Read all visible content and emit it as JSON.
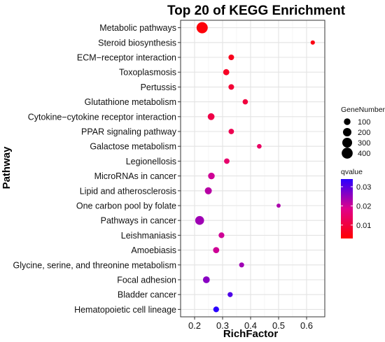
{
  "chart_data": {
    "type": "scatter",
    "title": "Top 20 of KEGG Enrichment",
    "xlabel": "RichFactor",
    "ylabel": "Pathway",
    "xlim": [
      0.15,
      0.665
    ],
    "x_ticks": [
      "0.2",
      "0.3",
      "0.4",
      "0.5",
      "0.6"
    ],
    "grid": true,
    "legend_position": "right",
    "size_legend": {
      "title": "GeneNumber",
      "values": [
        100,
        200,
        300,
        400
      ],
      "labels": [
        "100",
        "200",
        "300",
        "400"
      ]
    },
    "color_legend": {
      "title": "qvalue",
      "range": [
        0.003,
        0.034
      ],
      "ticks": [
        0.01,
        0.02,
        0.03
      ],
      "tick_labels": [
        "0.01",
        "0.02",
        "0.03"
      ],
      "low_color": "#FF0000",
      "mid_color": "#E0008A",
      "high_color": "#2A00FF"
    },
    "points": [
      {
        "pathway": "Metabolic pathways",
        "rich_factor": 0.227,
        "gene_number": 420,
        "qvalue": 0.004
      },
      {
        "pathway": "Steroid biosynthesis",
        "rich_factor": 0.622,
        "gene_number": 23,
        "qvalue": 0.005
      },
      {
        "pathway": "ECM−receptor interaction",
        "rich_factor": 0.331,
        "gene_number": 60,
        "qvalue": 0.006
      },
      {
        "pathway": "Toxoplasmosis",
        "rich_factor": 0.313,
        "gene_number": 80,
        "qvalue": 0.007
      },
      {
        "pathway": "Pertussis",
        "rich_factor": 0.331,
        "gene_number": 60,
        "qvalue": 0.009
      },
      {
        "pathway": "Glutathione metabolism",
        "rich_factor": 0.381,
        "gene_number": 50,
        "qvalue": 0.01
      },
      {
        "pathway": "Cytokine−cytokine receptor interaction",
        "rich_factor": 0.259,
        "gene_number": 110,
        "qvalue": 0.011
      },
      {
        "pathway": "PPAR signaling pathway",
        "rich_factor": 0.331,
        "gene_number": 55,
        "qvalue": 0.012
      },
      {
        "pathway": "Galactose metabolism",
        "rich_factor": 0.431,
        "gene_number": 30,
        "qvalue": 0.014
      },
      {
        "pathway": "Legionellosis",
        "rich_factor": 0.315,
        "gene_number": 55,
        "qvalue": 0.015
      },
      {
        "pathway": "MicroRNAs in cancer",
        "rich_factor": 0.26,
        "gene_number": 100,
        "qvalue": 0.02
      },
      {
        "pathway": "Lipid and atherosclerosis",
        "rich_factor": 0.249,
        "gene_number": 120,
        "qvalue": 0.022
      },
      {
        "pathway": "One carbon pool by folate",
        "rich_factor": 0.5,
        "gene_number": 18,
        "qvalue": 0.023
      },
      {
        "pathway": "Pathways in cancer",
        "rich_factor": 0.218,
        "gene_number": 230,
        "qvalue": 0.024
      },
      {
        "pathway": "Leishmaniasis",
        "rich_factor": 0.296,
        "gene_number": 65,
        "qvalue": 0.02
      },
      {
        "pathway": "Amoebiasis",
        "rich_factor": 0.277,
        "gene_number": 80,
        "qvalue": 0.02
      },
      {
        "pathway": "Glycine, serine, and threonine metabolism",
        "rich_factor": 0.368,
        "gene_number": 40,
        "qvalue": 0.024
      },
      {
        "pathway": "Focal adhesion",
        "rich_factor": 0.242,
        "gene_number": 110,
        "qvalue": 0.026
      },
      {
        "pathway": "Bladder cancer",
        "rich_factor": 0.327,
        "gene_number": 42,
        "qvalue": 0.031
      },
      {
        "pathway": "Hematopoietic cell lineage",
        "rich_factor": 0.277,
        "gene_number": 65,
        "qvalue": 0.034
      }
    ]
  }
}
